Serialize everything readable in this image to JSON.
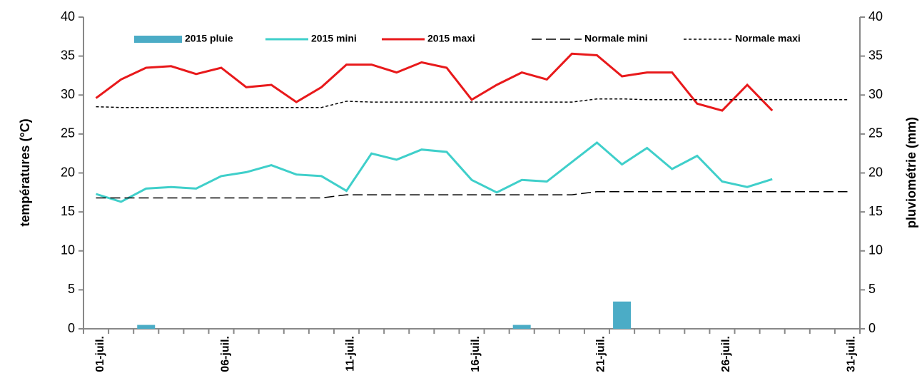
{
  "chart_data": {
    "type": "combo",
    "y_label": "températures (°C)",
    "y2_label": "pluviométrie (mm)",
    "categories": [
      "01-juil.",
      null,
      null,
      null,
      null,
      "06-juil.",
      null,
      null,
      null,
      null,
      "11-juil.",
      null,
      null,
      null,
      null,
      "16-juil.",
      null,
      null,
      null,
      null,
      "21-juil.",
      null,
      null,
      null,
      null,
      "26-juil.",
      null,
      null,
      null,
      null,
      "31-juil."
    ],
    "ylim": [
      0,
      40
    ],
    "yticks": [
      0,
      5,
      10,
      15,
      20,
      25,
      30,
      35,
      40
    ],
    "y2lim": [
      0,
      40
    ],
    "y2ticks": [
      0,
      5,
      10,
      15,
      20,
      25,
      30,
      35,
      40
    ],
    "series": [
      {
        "name": "2015 pluie",
        "type": "bar",
        "axis": "y2",
        "color": "#4bacc6",
        "values": [
          0,
          0,
          0.5,
          0,
          0,
          0,
          0,
          0,
          0,
          0,
          0,
          0,
          0,
          0,
          0,
          0,
          0,
          0.5,
          0,
          0,
          0,
          3.5,
          0,
          0,
          0,
          0,
          0,
          0,
          null,
          null,
          null
        ]
      },
      {
        "name": "2015 mini",
        "type": "line",
        "dash": "solid",
        "color": "#3fcfca",
        "values": [
          17.3,
          16.3,
          18.0,
          18.2,
          18.0,
          19.6,
          20.1,
          21.0,
          19.8,
          19.6,
          17.7,
          22.5,
          21.7,
          23.0,
          22.7,
          19.1,
          17.5,
          19.1,
          18.9,
          21.4,
          23.9,
          21.1,
          23.2,
          20.5,
          22.2,
          18.9,
          18.2,
          19.2,
          null,
          null,
          null
        ]
      },
      {
        "name": "2015 maxi",
        "type": "line",
        "dash": "solid",
        "color": "#e8191b",
        "values": [
          29.6,
          32.0,
          33.5,
          33.7,
          32.7,
          33.5,
          31.0,
          31.3,
          29.1,
          31.0,
          33.9,
          33.9,
          32.9,
          34.2,
          33.5,
          29.4,
          31.3,
          32.9,
          32.0,
          35.3,
          35.1,
          32.4,
          32.9,
          32.9,
          28.9,
          28.0,
          31.3,
          28.0,
          null,
          null,
          null
        ]
      },
      {
        "name": "Normale mini",
        "type": "line",
        "dash": "dashed",
        "color": "#000000",
        "values": [
          16.8,
          16.8,
          16.8,
          16.8,
          16.8,
          16.8,
          16.8,
          16.8,
          16.8,
          16.8,
          17.2,
          17.2,
          17.2,
          17.2,
          17.2,
          17.2,
          17.2,
          17.2,
          17.2,
          17.2,
          17.6,
          17.6,
          17.6,
          17.6,
          17.6,
          17.6,
          17.6,
          17.6,
          17.6,
          17.6,
          17.6
        ]
      },
      {
        "name": "Normale maxi",
        "type": "line",
        "dash": "dotted",
        "color": "#000000",
        "values": [
          28.5,
          28.4,
          28.4,
          28.4,
          28.4,
          28.4,
          28.4,
          28.4,
          28.4,
          28.4,
          29.2,
          29.1,
          29.1,
          29.1,
          29.1,
          29.1,
          29.1,
          29.1,
          29.1,
          29.1,
          29.5,
          29.5,
          29.4,
          29.4,
          29.4,
          29.4,
          29.4,
          29.4,
          29.4,
          29.4,
          29.4
        ]
      }
    ]
  }
}
